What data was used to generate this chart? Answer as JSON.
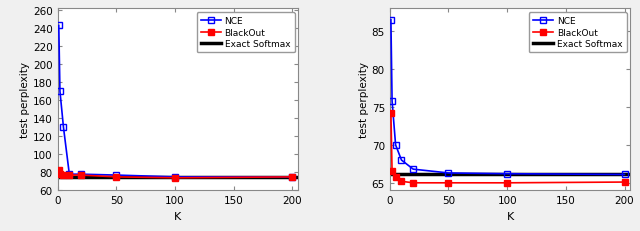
{
  "left": {
    "K": [
      1,
      2,
      5,
      10,
      20,
      50,
      100,
      200
    ],
    "NCE": [
      243,
      170,
      130,
      78,
      78,
      77,
      75,
      75
    ],
    "BlackOut": [
      83,
      78,
      77,
      77,
      77,
      75,
      74,
      75
    ],
    "ExactSoftmax": 74.5,
    "ylim": [
      60,
      262
    ],
    "yticks": [
      60,
      80,
      100,
      120,
      140,
      160,
      180,
      200,
      220,
      240,
      260
    ],
    "ylabel": "test perplexity"
  },
  "right": {
    "K": [
      1,
      2,
      5,
      10,
      20,
      50,
      100,
      200
    ],
    "NCE": [
      86.5,
      75.8,
      70.0,
      68.0,
      66.8,
      66.3,
      66.2,
      66.1
    ],
    "BlackOut": [
      74.2,
      66.5,
      65.8,
      65.2,
      65.0,
      65.0,
      65.0,
      65.1
    ],
    "ExactSoftmax": 66.2,
    "ylim": [
      64,
      88
    ],
    "yticks": [
      65,
      70,
      75,
      80,
      85
    ],
    "ylabel": "test perplexity"
  },
  "xlabel": "K",
  "legend_labels": [
    "NCE",
    "BlackOut",
    "Exact Softmax"
  ],
  "NCE_color": "#0000FF",
  "BlackOut_color": "#FF0000",
  "ExactSoftmax_color": "#000000",
  "marker_NCE": "s",
  "marker_BlackOut": "s",
  "bg_color": "#F0F0F0",
  "axes_bg": "#FFFFFF",
  "linewidth": 1.2,
  "markersize": 4,
  "xticks": [
    0,
    50,
    100,
    150,
    200
  ],
  "xlim": [
    0,
    205
  ]
}
